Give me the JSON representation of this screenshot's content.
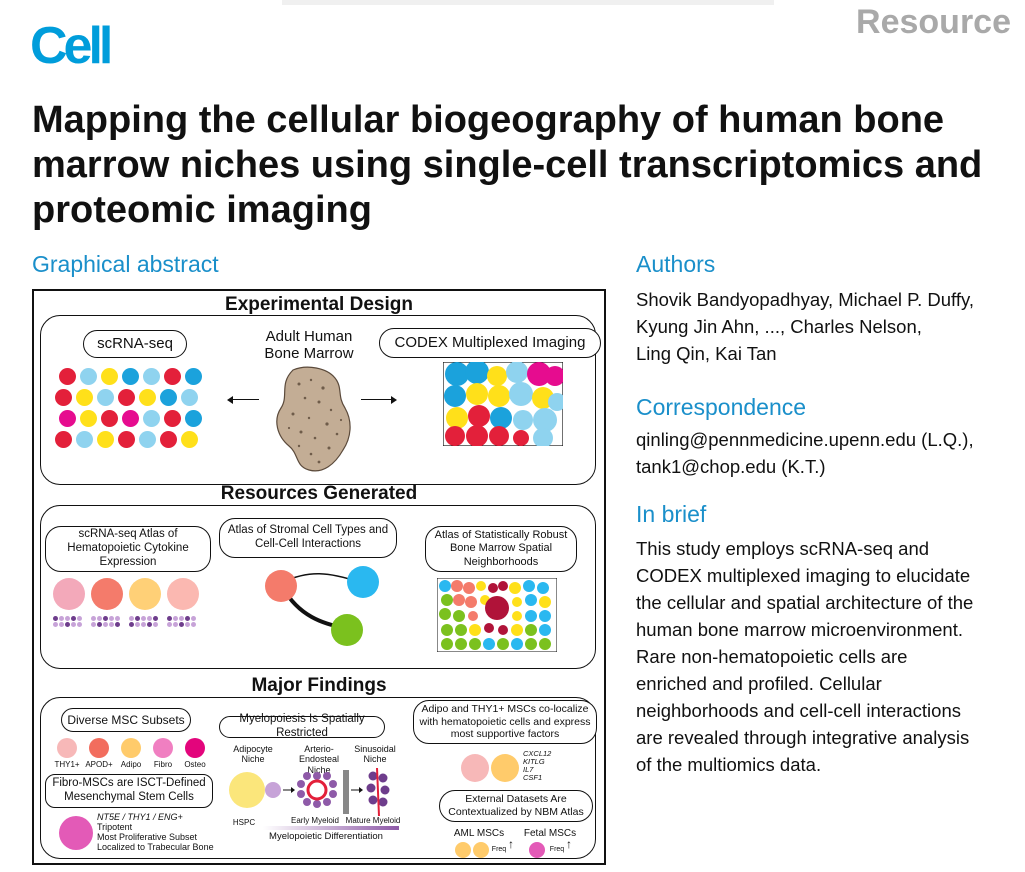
{
  "header": {
    "journal_logo": "Cell",
    "article_type": "Resource"
  },
  "title": "Mapping the cellular biogeography of human bone marrow niches using single-cell transcriptomics and proteomic imaging",
  "graphical_abstract": {
    "heading": "Graphical abstract",
    "experimental_design": {
      "heading": "Experimental Design",
      "left_label": "scRNA-seq",
      "center_label": "Adult Human Bone Marrow",
      "right_label": "CODEX Multiplexed Imaging",
      "dot_colors": [
        "#e3203a",
        "#8fd3ef",
        "#ffe01a",
        "#1ba2dc",
        "#e60c8f"
      ]
    },
    "resources": {
      "heading": "Resources Generated",
      "atlas_cytokine": "scRNA-seq Atlas of Hematopoietic Cytokine Expression",
      "atlas_stromal": "Atlas of Stromal Cell Types and Cell-Cell Interactions",
      "atlas_spatial": "Atlas of Statistically Robust Bone Marrow Spatial Neighborhoods",
      "cytokine_colors": [
        "#f3a9ba",
        "#f47b6b",
        "#ffd077",
        "#fbb8b1"
      ]
    },
    "findings": {
      "heading": "Major Findings",
      "msc_subsets": "Diverse MSC Subsets",
      "msc_labels": [
        "THY1+",
        "APOD+",
        "Adipo",
        "Fibro",
        "Osteo"
      ],
      "msc_colors": [
        "#f7b8b8",
        "#f26d5e",
        "#ffcb6b",
        "#f07fc1",
        "#e3057c"
      ],
      "fibro_box": "Fibro-MSCs are ISCT-Defined Mesenchymal Stem Cells",
      "fibro_markers": "NT5E / THY1 / ENG+",
      "fibro_facts": [
        "Tripotent",
        "Most Proliferative Subset",
        "Localized to Trabecular Bone"
      ],
      "myelopoiesis": "Myelopoiesis Is Spatially Restricted",
      "niches": [
        "Adipocyte Niche",
        "Arterio-Endosteal Niche",
        "Sinusoidal Niche"
      ],
      "stages": [
        "HSPC",
        "Early Myeloid",
        "Mature Myeloid"
      ],
      "differentiation": "Myelopoietic Differentiation",
      "colocalize": "Adipo and THY1+ MSCs co-localize with hematopoietic cells and express most supportive factors",
      "factors": [
        "CXCL12",
        "KITLG",
        "IL7",
        "CSF1"
      ],
      "external": "External Datasets Are Contextualized by NBM Atlas",
      "aml": "AML MSCs",
      "fetal": "Fetal MSCs",
      "freq": "Freq"
    }
  },
  "authors": {
    "heading": "Authors",
    "lines": [
      "Shovik Bandyopadhyay, Michael P. Duffy,",
      "Kyung Jin Ahn, ..., Charles Nelson,",
      "Ling Qin, Kai Tan"
    ]
  },
  "correspondence": {
    "heading": "Correspondence",
    "lines": [
      "qinling@pennmedicine.upenn.edu (L.Q.),",
      "tank1@chop.edu (K.T.)"
    ]
  },
  "in_brief": {
    "heading": "In brief",
    "lines": [
      "This study employs scRNA-seq and",
      "CODEX multiplexed imaging to elucidate",
      "the cellular and spatial architecture of the",
      "human bone marrow microenvironment.",
      "Rare non-hematopoietic cells are",
      "enriched and profiled. Cellular",
      "neighborhoods and cell-cell interactions",
      "are revealed through integrative analysis",
      "of the multiomics data."
    ]
  }
}
